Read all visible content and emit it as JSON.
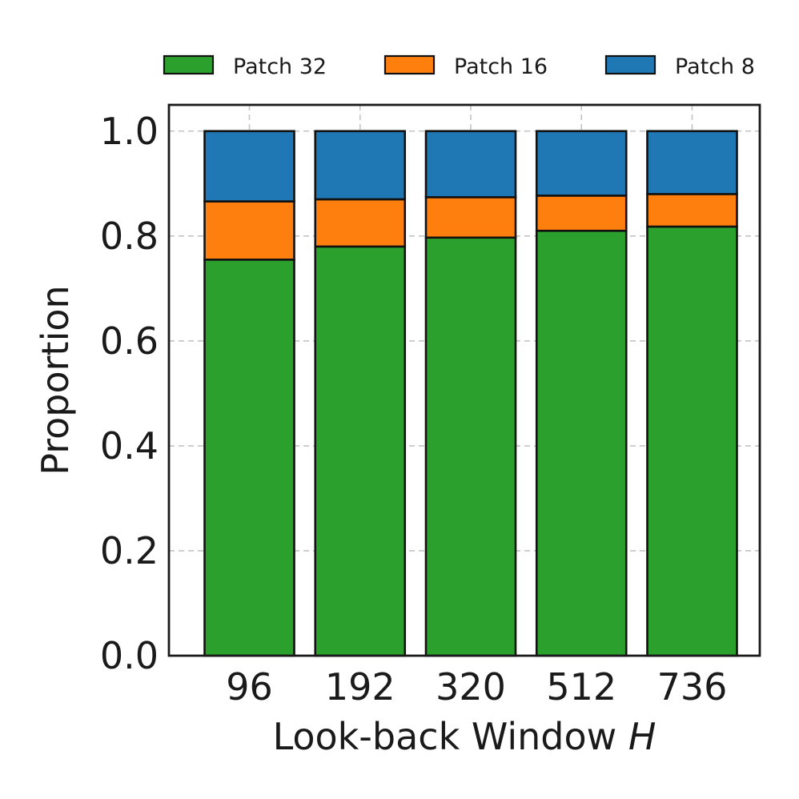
{
  "chart_data": {
    "type": "bar",
    "stacked": true,
    "categories": [
      "96",
      "192",
      "320",
      "512",
      "736"
    ],
    "series": [
      {
        "name": "Patch 32",
        "color": "#2ca02c",
        "values": [
          0.755,
          0.78,
          0.797,
          0.81,
          0.818
        ]
      },
      {
        "name": "Patch 16",
        "color": "#ff7f0e",
        "values": [
          0.111,
          0.09,
          0.077,
          0.067,
          0.062
        ]
      },
      {
        "name": "Patch 8",
        "color": "#1f77b4",
        "values": [
          0.134,
          0.13,
          0.126,
          0.123,
          0.12
        ]
      }
    ],
    "xlabel_main": "Look-back Window ",
    "xlabel_var": "H",
    "ylabel": "Proportion",
    "ylim": [
      0,
      1.05
    ],
    "yticks": [
      0.0,
      0.2,
      0.4,
      0.6,
      0.8,
      1.0
    ],
    "ytick_labels": [
      "0.0",
      "0.2",
      "0.4",
      "0.6",
      "0.8",
      "1.0"
    ],
    "grid": true,
    "legend_position": "top"
  }
}
